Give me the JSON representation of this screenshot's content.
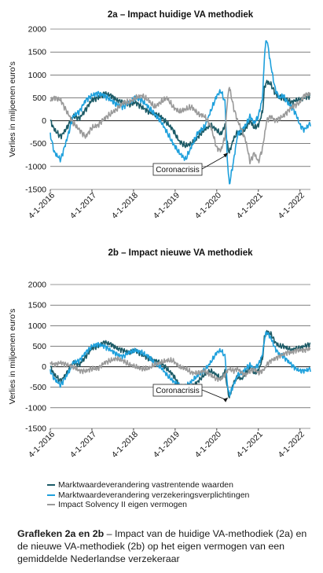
{
  "colors": {
    "vastrentend": "#1b5a66",
    "verplichtingen": "#1ea0dc",
    "solvency": "#9a9a9a",
    "axis": "#222222",
    "grid": "#333333"
  },
  "chart_data": [
    {
      "type": "line",
      "title": "2a – Impact huidige VA methodiek",
      "ylabel": "Verlies in miljoenen euro's",
      "ylim": [
        -1500,
        2000
      ],
      "yticks": [
        2000,
        1500,
        1000,
        500,
        0,
        -500,
        -1000,
        -1500
      ],
      "xticks": [
        "4-1-2016",
        "4-1-2017",
        "4-1-2018",
        "4-1-2019",
        "4-1-2020",
        "4-1-2021",
        "4-1-2022"
      ],
      "xlim": [
        2016.0,
        2022.25
      ],
      "grid": "horizontal",
      "annotation": "Coronacrisis",
      "series": [
        {
          "name": "Marktwaardeverandering vastrentende waarden",
          "color_key": "vastrentend",
          "x": [
            2016.0,
            2016.1,
            2016.25,
            2016.4,
            2016.55,
            2016.7,
            2016.85,
            2017.0,
            2017.15,
            2017.3,
            2017.45,
            2017.6,
            2017.75,
            2017.9,
            2018.05,
            2018.2,
            2018.35,
            2018.5,
            2018.65,
            2018.8,
            2018.95,
            2019.1,
            2019.25,
            2019.4,
            2019.55,
            2019.7,
            2019.85,
            2020.0,
            2020.1,
            2020.2,
            2020.25,
            2020.3,
            2020.4,
            2020.5,
            2020.6,
            2020.7,
            2020.8,
            2020.9,
            2021.0,
            2021.1,
            2021.15,
            2021.2,
            2021.3,
            2021.4,
            2021.5,
            2021.6,
            2021.7,
            2021.8,
            2021.9,
            2022.0,
            2022.1,
            2022.25
          ],
          "values": [
            0,
            -200,
            -350,
            -150,
            100,
            50,
            250,
            450,
            500,
            600,
            550,
            450,
            400,
            350,
            400,
            300,
            200,
            150,
            100,
            -50,
            -200,
            -450,
            -550,
            -500,
            -350,
            -200,
            -100,
            -200,
            -300,
            -100,
            -500,
            -700,
            -400,
            -250,
            -300,
            -150,
            0,
            -150,
            -100,
            200,
            750,
            850,
            800,
            600,
            500,
            500,
            450,
            400,
            450,
            450,
            500,
            550
          ]
        },
        {
          "name": "Marktwaardeverandering verzekeringsverplichtingen",
          "color_key": "verplichtingen",
          "x": [
            2016.0,
            2016.1,
            2016.25,
            2016.4,
            2016.55,
            2016.7,
            2016.85,
            2017.0,
            2017.15,
            2017.3,
            2017.45,
            2017.6,
            2017.75,
            2017.9,
            2018.05,
            2018.2,
            2018.35,
            2018.5,
            2018.65,
            2018.8,
            2018.95,
            2019.1,
            2019.25,
            2019.4,
            2019.55,
            2019.7,
            2019.85,
            2020.0,
            2020.1,
            2020.2,
            2020.25,
            2020.3,
            2020.4,
            2020.5,
            2020.6,
            2020.7,
            2020.8,
            2020.9,
            2021.0,
            2021.1,
            2021.15,
            2021.2,
            2021.3,
            2021.4,
            2021.5,
            2021.6,
            2021.7,
            2021.8,
            2021.9,
            2022.0,
            2022.1,
            2022.25
          ],
          "values": [
            -300,
            -700,
            -850,
            -400,
            100,
            200,
            450,
            550,
            600,
            550,
            450,
            350,
            300,
            400,
            500,
            450,
            300,
            150,
            0,
            -250,
            -500,
            -700,
            -850,
            -550,
            -250,
            -150,
            200,
            550,
            650,
            400,
            -800,
            -1400,
            -900,
            -300,
            -200,
            -100,
            100,
            -50,
            100,
            500,
            1500,
            1800,
            1200,
            700,
            500,
            550,
            400,
            300,
            150,
            -100,
            -200,
            -50
          ]
        },
        {
          "name": "Impact Solvency II eigen vermogen",
          "color_key": "solvency",
          "x": [
            2016.0,
            2016.1,
            2016.25,
            2016.4,
            2016.55,
            2016.7,
            2016.85,
            2017.0,
            2017.15,
            2017.3,
            2017.45,
            2017.6,
            2017.75,
            2017.9,
            2018.05,
            2018.2,
            2018.35,
            2018.5,
            2018.65,
            2018.8,
            2018.95,
            2019.1,
            2019.25,
            2019.4,
            2019.55,
            2019.7,
            2019.85,
            2020.0,
            2020.1,
            2020.2,
            2020.25,
            2020.3,
            2020.4,
            2020.5,
            2020.6,
            2020.7,
            2020.8,
            2020.9,
            2021.0,
            2021.1,
            2021.15,
            2021.2,
            2021.3,
            2021.4,
            2021.5,
            2021.6,
            2021.7,
            2021.8,
            2021.9,
            2022.0,
            2022.1,
            2022.25
          ],
          "values": [
            450,
            500,
            450,
            200,
            -50,
            -200,
            -350,
            -150,
            -100,
            50,
            150,
            250,
            400,
            400,
            500,
            550,
            450,
            300,
            400,
            500,
            300,
            200,
            250,
            300,
            150,
            100,
            -100,
            -600,
            -650,
            -350,
            400,
            750,
            300,
            0,
            -200,
            -450,
            -900,
            -700,
            -900,
            -600,
            -300,
            0,
            100,
            0,
            50,
            100,
            200,
            300,
            350,
            400,
            550,
            600
          ]
        }
      ]
    },
    {
      "type": "line",
      "title": "2b – Impact nieuwe VA methodiek",
      "ylabel": "Verlies in miljoenen euro's",
      "ylim": [
        -1500,
        2000
      ],
      "yticks": [
        2000,
        1500,
        1000,
        500,
        0,
        -500,
        -1000,
        -1500
      ],
      "xticks": [
        "4-1-2016",
        "4-1-2017",
        "4-1-2018",
        "4-1-2019",
        "4-1-2020",
        "4-1-2021",
        "4-1-2022"
      ],
      "xlim": [
        2016.0,
        2022.25
      ],
      "grid": "horizontal",
      "annotation": "Coronacrisis",
      "series": [
        {
          "name": "Marktwaardeverandering vastrentende waarden",
          "color_key": "vastrentend",
          "x": [
            2016.0,
            2016.1,
            2016.25,
            2016.4,
            2016.55,
            2016.7,
            2016.85,
            2017.0,
            2017.15,
            2017.3,
            2017.45,
            2017.6,
            2017.75,
            2017.9,
            2018.05,
            2018.2,
            2018.35,
            2018.5,
            2018.65,
            2018.8,
            2018.95,
            2019.1,
            2019.25,
            2019.4,
            2019.55,
            2019.7,
            2019.85,
            2020.0,
            2020.1,
            2020.2,
            2020.25,
            2020.3,
            2020.4,
            2020.5,
            2020.6,
            2020.7,
            2020.8,
            2020.9,
            2021.0,
            2021.1,
            2021.15,
            2021.2,
            2021.3,
            2021.4,
            2021.5,
            2021.6,
            2021.7,
            2021.8,
            2021.9,
            2022.0,
            2022.1,
            2022.25
          ],
          "values": [
            0,
            -200,
            -350,
            -150,
            100,
            50,
            250,
            450,
            500,
            600,
            550,
            450,
            400,
            350,
            400,
            300,
            200,
            150,
            100,
            -50,
            -200,
            -450,
            -550,
            -500,
            -350,
            -200,
            -100,
            -200,
            -300,
            -100,
            -500,
            -750,
            -400,
            -250,
            -300,
            -150,
            0,
            -150,
            -100,
            200,
            750,
            850,
            800,
            600,
            500,
            500,
            450,
            400,
            450,
            450,
            500,
            550
          ]
        },
        {
          "name": "Marktwaardeverandering verzekeringsverplichtingen",
          "color_key": "verplichtingen",
          "x": [
            2016.0,
            2016.1,
            2016.25,
            2016.4,
            2016.55,
            2016.7,
            2016.85,
            2017.0,
            2017.15,
            2017.3,
            2017.45,
            2017.6,
            2017.75,
            2017.9,
            2018.05,
            2018.2,
            2018.35,
            2018.5,
            2018.65,
            2018.8,
            2018.95,
            2019.1,
            2019.25,
            2019.4,
            2019.55,
            2019.7,
            2019.85,
            2020.0,
            2020.1,
            2020.2,
            2020.25,
            2020.3,
            2020.4,
            2020.5,
            2020.6,
            2020.7,
            2020.8,
            2020.9,
            2021.0,
            2021.1,
            2021.15,
            2021.2,
            2021.3,
            2021.4,
            2021.5,
            2021.6,
            2021.7,
            2021.8,
            2021.9,
            2022.0,
            2022.1,
            2022.25
          ],
          "values": [
            -100,
            -300,
            -450,
            -200,
            100,
            150,
            350,
            500,
            550,
            500,
            400,
            300,
            250,
            350,
            400,
            350,
            250,
            100,
            0,
            -200,
            -350,
            -450,
            -500,
            -350,
            -200,
            -100,
            100,
            350,
            400,
            250,
            -400,
            -700,
            -450,
            -200,
            -150,
            -50,
            50,
            -50,
            50,
            300,
            700,
            850,
            700,
            450,
            300,
            250,
            150,
            50,
            -50,
            -100,
            -100,
            -50
          ]
        },
        {
          "name": "Impact Solvency II eigen vermogen",
          "color_key": "solvency",
          "x": [
            2016.0,
            2016.1,
            2016.25,
            2016.4,
            2016.55,
            2016.7,
            2016.85,
            2017.0,
            2017.15,
            2017.3,
            2017.45,
            2017.6,
            2017.75,
            2017.9,
            2018.05,
            2018.2,
            2018.35,
            2018.5,
            2018.65,
            2018.8,
            2018.95,
            2019.1,
            2019.25,
            2019.4,
            2019.55,
            2019.7,
            2019.85,
            2020.0,
            2020.1,
            2020.2,
            2020.25,
            2020.3,
            2020.4,
            2020.5,
            2020.6,
            2020.7,
            2020.8,
            2020.9,
            2021.0,
            2021.1,
            2021.15,
            2021.2,
            2021.3,
            2021.4,
            2021.5,
            2021.6,
            2021.7,
            2021.8,
            2021.9,
            2022.0,
            2022.1,
            2022.25
          ],
          "values": [
            100,
            50,
            100,
            50,
            0,
            -100,
            -100,
            -50,
            -50,
            100,
            150,
            200,
            150,
            50,
            0,
            -50,
            -50,
            50,
            100,
            150,
            150,
            0,
            -50,
            -150,
            -150,
            -100,
            -200,
            -300,
            -300,
            -200,
            -100,
            -50,
            -100,
            -50,
            -150,
            -200,
            -100,
            -50,
            -150,
            -100,
            -50,
            50,
            150,
            200,
            250,
            300,
            350,
            350,
            400,
            400,
            400,
            450
          ]
        }
      ]
    }
  ],
  "legend": {
    "items": [
      {
        "label": "Marktwaardeverandering vastrentende waarden",
        "color_key": "vastrentend"
      },
      {
        "label": "Marktwaardeverandering verzekeringsverplichtingen",
        "color_key": "verplichtingen"
      },
      {
        "label": "Impact Solvency II eigen vermogen",
        "color_key": "solvency"
      }
    ]
  },
  "caption": {
    "bold": "Grafleken 2a en 2b",
    "text": " – Impact van de huidige VA-methodiek (2a) en de nieuwe VA-methodiek (2b) op het eigen vermogen van een gemiddelde Nederlandse verzekeraar"
  }
}
